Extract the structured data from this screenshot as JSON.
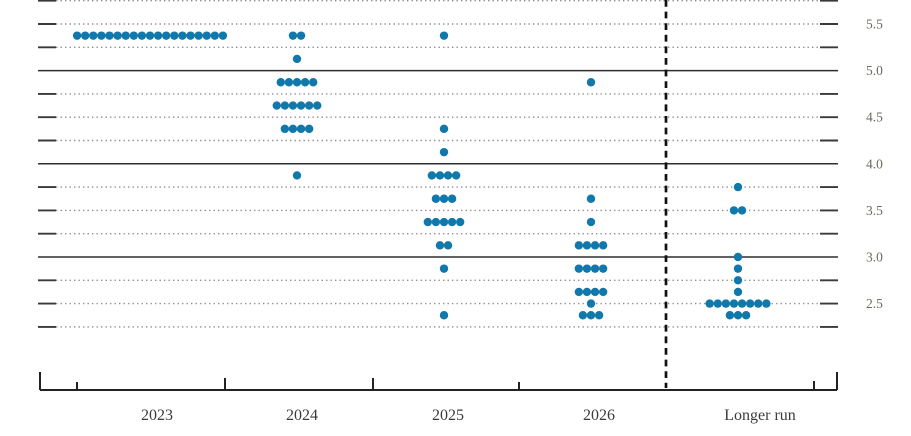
{
  "chart_data": {
    "type": "scatter",
    "subtype": "fomc-dot-plot",
    "title": "",
    "xlabel": "",
    "ylabel": "",
    "x_categories": [
      "2023",
      "2024",
      "2025",
      "2026",
      "Longer run"
    ],
    "series": [
      {
        "category": "2023",
        "dots": [
          {
            "rate": 5.375,
            "count": 19
          }
        ]
      },
      {
        "category": "2024",
        "dots": [
          {
            "rate": 5.375,
            "count": 2
          },
          {
            "rate": 5.125,
            "count": 1
          },
          {
            "rate": 4.875,
            "count": 5
          },
          {
            "rate": 4.625,
            "count": 6
          },
          {
            "rate": 4.375,
            "count": 4
          },
          {
            "rate": 3.875,
            "count": 1
          }
        ]
      },
      {
        "category": "2025",
        "dots": [
          {
            "rate": 5.375,
            "count": 1
          },
          {
            "rate": 4.375,
            "count": 1
          },
          {
            "rate": 4.125,
            "count": 1
          },
          {
            "rate": 3.875,
            "count": 4
          },
          {
            "rate": 3.625,
            "count": 3
          },
          {
            "rate": 3.375,
            "count": 5
          },
          {
            "rate": 3.125,
            "count": 2
          },
          {
            "rate": 2.875,
            "count": 1
          },
          {
            "rate": 2.375,
            "count": 1
          }
        ]
      },
      {
        "category": "2026",
        "dots": [
          {
            "rate": 4.875,
            "count": 1
          },
          {
            "rate": 3.625,
            "count": 1
          },
          {
            "rate": 3.375,
            "count": 1
          },
          {
            "rate": 3.125,
            "count": 4
          },
          {
            "rate": 2.875,
            "count": 4
          },
          {
            "rate": 2.625,
            "count": 4
          },
          {
            "rate": 2.5,
            "count": 1
          },
          {
            "rate": 2.375,
            "count": 3
          }
        ]
      },
      {
        "category": "Longer run",
        "dots": [
          {
            "rate": 3.75,
            "count": 1
          },
          {
            "rate": 3.5,
            "count": 2
          },
          {
            "rate": 3.0,
            "count": 1
          },
          {
            "rate": 2.875,
            "count": 1
          },
          {
            "rate": 2.75,
            "count": 1
          },
          {
            "rate": 2.625,
            "count": 1
          },
          {
            "rate": 2.5,
            "count": 8
          },
          {
            "rate": 2.375,
            "count": 3
          }
        ]
      }
    ],
    "y_axis": {
      "side": "right",
      "tick_labels": [
        "5.5",
        "5.0",
        "4.5",
        "4.0",
        "3.5",
        "3.0",
        "2.5"
      ],
      "tick_values": [
        5.5,
        5.0,
        4.5,
        4.0,
        3.5,
        3.0,
        2.5
      ],
      "min": 2.25,
      "max": 5.75,
      "grid_step": 0.25,
      "solid_line_values": [
        5.0,
        4.0,
        3.0
      ]
    },
    "separator": {
      "between": [
        "2026",
        "Longer run"
      ],
      "style": "dashed-vertical"
    },
    "grid": true,
    "legend": null,
    "colors": {
      "dot": "#1178ab",
      "solid_line": "#2e2e2e",
      "dotted_line": "#8f8f8f",
      "edge_tick": "#3a3a3a",
      "axis": "#222222",
      "y_label_text": "#6b6a5e",
      "x_label_text": "#3b3b3b",
      "separator_line": "#111111",
      "background": "#ffffff"
    }
  }
}
